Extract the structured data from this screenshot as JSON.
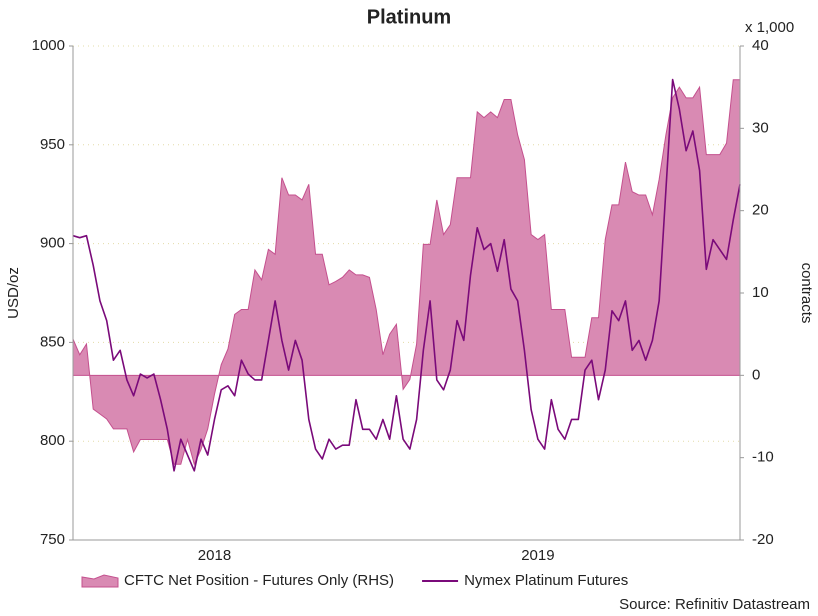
{
  "chart_data": {
    "type": "line-area",
    "title": "Platinum",
    "y_label": "USD/oz",
    "y2_label": "contracts",
    "y2_unit": "x 1,000",
    "source": "Source: Refinitiv Datastream",
    "categories": [
      null,
      null,
      null,
      null,
      null,
      null,
      null,
      null,
      null,
      null,
      null,
      null,
      null,
      null,
      null,
      null,
      null,
      null,
      null,
      null,
      null,
      "2018",
      null,
      null,
      null,
      null,
      null,
      null,
      null,
      null,
      null,
      null,
      null,
      null,
      null,
      null,
      null,
      null,
      null,
      null,
      null,
      null,
      null,
      null,
      null,
      null,
      null,
      null,
      null,
      null,
      null,
      null,
      null,
      null,
      null,
      null,
      null,
      null,
      null,
      null,
      null,
      null,
      null,
      null,
      null,
      null,
      null,
      null,
      null,
      "2019",
      null,
      null,
      null,
      null,
      null,
      null,
      null,
      null,
      null,
      null,
      null,
      null,
      null,
      null,
      null,
      null,
      null,
      null,
      null,
      null,
      null,
      null,
      null,
      null,
      null,
      null,
      null,
      null,
      null,
      null
    ],
    "series": [
      {
        "name": "CFTC Net Position - Futures Only (RHS)",
        "kind": "area",
        "axis": "y2",
        "color": "#d98ab3",
        "edge": "#c4508e",
        "values": [
          4.4,
          2.5,
          3.8,
          -4.1,
          -4.7,
          -5.3,
          -6.5,
          -6.5,
          -6.5,
          -9.3,
          -7.8,
          -7.8,
          -7.8,
          -7.8,
          -7.8,
          -10.8,
          -10.8,
          -7.8,
          -10.8,
          -9.0,
          -6.5,
          -2.3,
          1.3,
          3.2,
          7.4,
          8.0,
          8.0,
          12.8,
          11.6,
          15.3,
          14.7,
          24.0,
          21.9,
          21.9,
          21.3,
          23.2,
          14.7,
          14.7,
          11.0,
          11.4,
          11.9,
          12.8,
          12.2,
          12.2,
          11.9,
          8.0,
          2.5,
          5.0,
          6.2,
          -1.7,
          -0.5,
          3.8,
          15.9,
          15.9,
          21.3,
          17.1,
          18.3,
          24.0,
          24.0,
          24.0,
          32.0,
          31.3,
          32.0,
          31.3,
          33.5,
          33.5,
          29.2,
          26.2,
          17.1,
          16.5,
          17.1,
          8.0,
          8.0,
          8.0,
          2.2,
          2.2,
          2.2,
          7.0,
          7.0,
          16.5,
          20.7,
          20.7,
          25.9,
          22.3,
          21.9,
          21.9,
          19.5,
          23.8,
          29.2,
          33.7,
          35.0,
          33.7,
          33.7,
          35.0,
          26.8,
          26.8,
          26.8,
          28.2,
          35.9,
          35.9
        ]
      },
      {
        "name": "Nymex Platinum Futures",
        "kind": "line",
        "axis": "y",
        "color": "#7a0a7a",
        "values": [
          904,
          903,
          904,
          889,
          871,
          861,
          841,
          846,
          831,
          823,
          834,
          832,
          834,
          821,
          806,
          785,
          801,
          793,
          785,
          801,
          793,
          811,
          826,
          828,
          823,
          841,
          834,
          831,
          831,
          851,
          871,
          851,
          836,
          851,
          841,
          811,
          796,
          791,
          801,
          796,
          798,
          798,
          821,
          806,
          806,
          801,
          811,
          801,
          823,
          801,
          796,
          811,
          846,
          871,
          831,
          826,
          836,
          861,
          851,
          884,
          908,
          897,
          900,
          886,
          902,
          877,
          871,
          846,
          816,
          801,
          796,
          821,
          806,
          801,
          811,
          811,
          836,
          841,
          821,
          836,
          866,
          861,
          871,
          846,
          851,
          841,
          851,
          871,
          927,
          983,
          968,
          947,
          957,
          937,
          887,
          902,
          897,
          892,
          912,
          930
        ]
      }
    ],
    "ylim": [
      750,
      1000
    ],
    "yticks": [
      750,
      800,
      850,
      900,
      950,
      1000
    ],
    "y2lim": [
      -20,
      40
    ],
    "y2ticks": [
      -20,
      -10,
      0,
      10,
      20,
      30,
      40
    ],
    "grid": true,
    "legend": "bottom"
  }
}
